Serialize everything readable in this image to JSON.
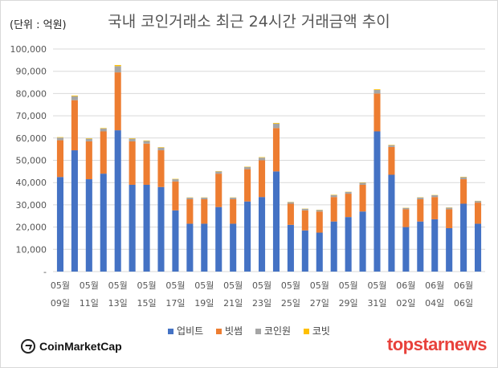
{
  "unit_label": "(단위 : 억원)",
  "brand_left": "CoinMarketCap",
  "brand_right": "topstarnews",
  "chart_data": {
    "type": "bar",
    "stacked": true,
    "title": "국내 코인거래소 최근 24시간 거래금액 추이",
    "ylim": [
      0,
      100000
    ],
    "yticks": [
      "-",
      "10,000",
      "20,000",
      "30,000",
      "40,000",
      "50,000",
      "60,000",
      "70,000",
      "80,000",
      "90,000",
      "100,000"
    ],
    "grid": true,
    "legend_position": "bottom",
    "categories": [
      "05월 09일",
      "05월 10일",
      "05월 11일",
      "05월 12일",
      "05월 13일",
      "05월 14일",
      "05월 15일",
      "05월 16일",
      "05월 17일",
      "05월 18일",
      "05월 19일",
      "05월 20일",
      "05월 21일",
      "05월 22일",
      "05월 23일",
      "05월 24일",
      "05월 25일",
      "05월 26일",
      "05월 27일",
      "05월 28일",
      "05월 29일",
      "05월 30일",
      "05월 31일",
      "06월 01일",
      "06월 02일",
      "06월 03일",
      "06월 04일",
      "06월 05일",
      "06월 06일",
      "06월 07일"
    ],
    "x_tick_labels": [
      {
        "index": 0,
        "month": "05월",
        "day": "09일"
      },
      {
        "index": 2,
        "month": "05월",
        "day": "11일"
      },
      {
        "index": 4,
        "month": "05월",
        "day": "13일"
      },
      {
        "index": 6,
        "month": "05월",
        "day": "15일"
      },
      {
        "index": 8,
        "month": "05월",
        "day": "17일"
      },
      {
        "index": 10,
        "month": "05월",
        "day": "19일"
      },
      {
        "index": 12,
        "month": "05월",
        "day": "21일"
      },
      {
        "index": 14,
        "month": "05월",
        "day": "23일"
      },
      {
        "index": 16,
        "month": "05월",
        "day": "25일"
      },
      {
        "index": 18,
        "month": "05월",
        "day": "27일"
      },
      {
        "index": 20,
        "month": "05월",
        "day": "29일"
      },
      {
        "index": 22,
        "month": "05월",
        "day": "31일"
      },
      {
        "index": 24,
        "month": "06월",
        "day": "02일"
      },
      {
        "index": 26,
        "month": "06월",
        "day": "04일"
      },
      {
        "index": 28,
        "month": "06월",
        "day": "06일"
      }
    ],
    "series": [
      {
        "name": "업비트",
        "color": "#4472c4",
        "values": [
          42500,
          54500,
          41500,
          44000,
          63500,
          39000,
          39000,
          38000,
          27500,
          21500,
          21500,
          29000,
          21500,
          31500,
          33500,
          45000,
          21000,
          18500,
          17500,
          22500,
          24500,
          27000,
          63000,
          43500,
          20000,
          22500,
          23500,
          19500,
          30500,
          21500
        ]
      },
      {
        "name": "빗썸",
        "color": "#ed7d31",
        "values": [
          16500,
          22500,
          17000,
          19000,
          26000,
          19500,
          18500,
          16500,
          13000,
          11000,
          11000,
          15000,
          11000,
          14500,
          16500,
          19500,
          9500,
          9000,
          9500,
          11000,
          10500,
          12000,
          17000,
          12500,
          8000,
          10000,
          10000,
          8500,
          11000,
          9500
        ]
      },
      {
        "name": "코인원",
        "color": "#a5a5a5",
        "values": [
          1200,
          1800,
          1200,
          1300,
          2800,
          1200,
          1200,
          1200,
          1000,
          700,
          700,
          1000,
          700,
          1000,
          1200,
          2000,
          700,
          700,
          700,
          900,
          800,
          900,
          1600,
          800,
          600,
          800,
          800,
          700,
          900,
          700
        ]
      },
      {
        "name": "코빗",
        "color": "#ffc000",
        "values": [
          200,
          300,
          200,
          200,
          500,
          200,
          200,
          200,
          150,
          100,
          100,
          150,
          100,
          150,
          200,
          300,
          100,
          100,
          100,
          150,
          100,
          150,
          300,
          150,
          100,
          100,
          100,
          100,
          150,
          100
        ]
      }
    ]
  }
}
